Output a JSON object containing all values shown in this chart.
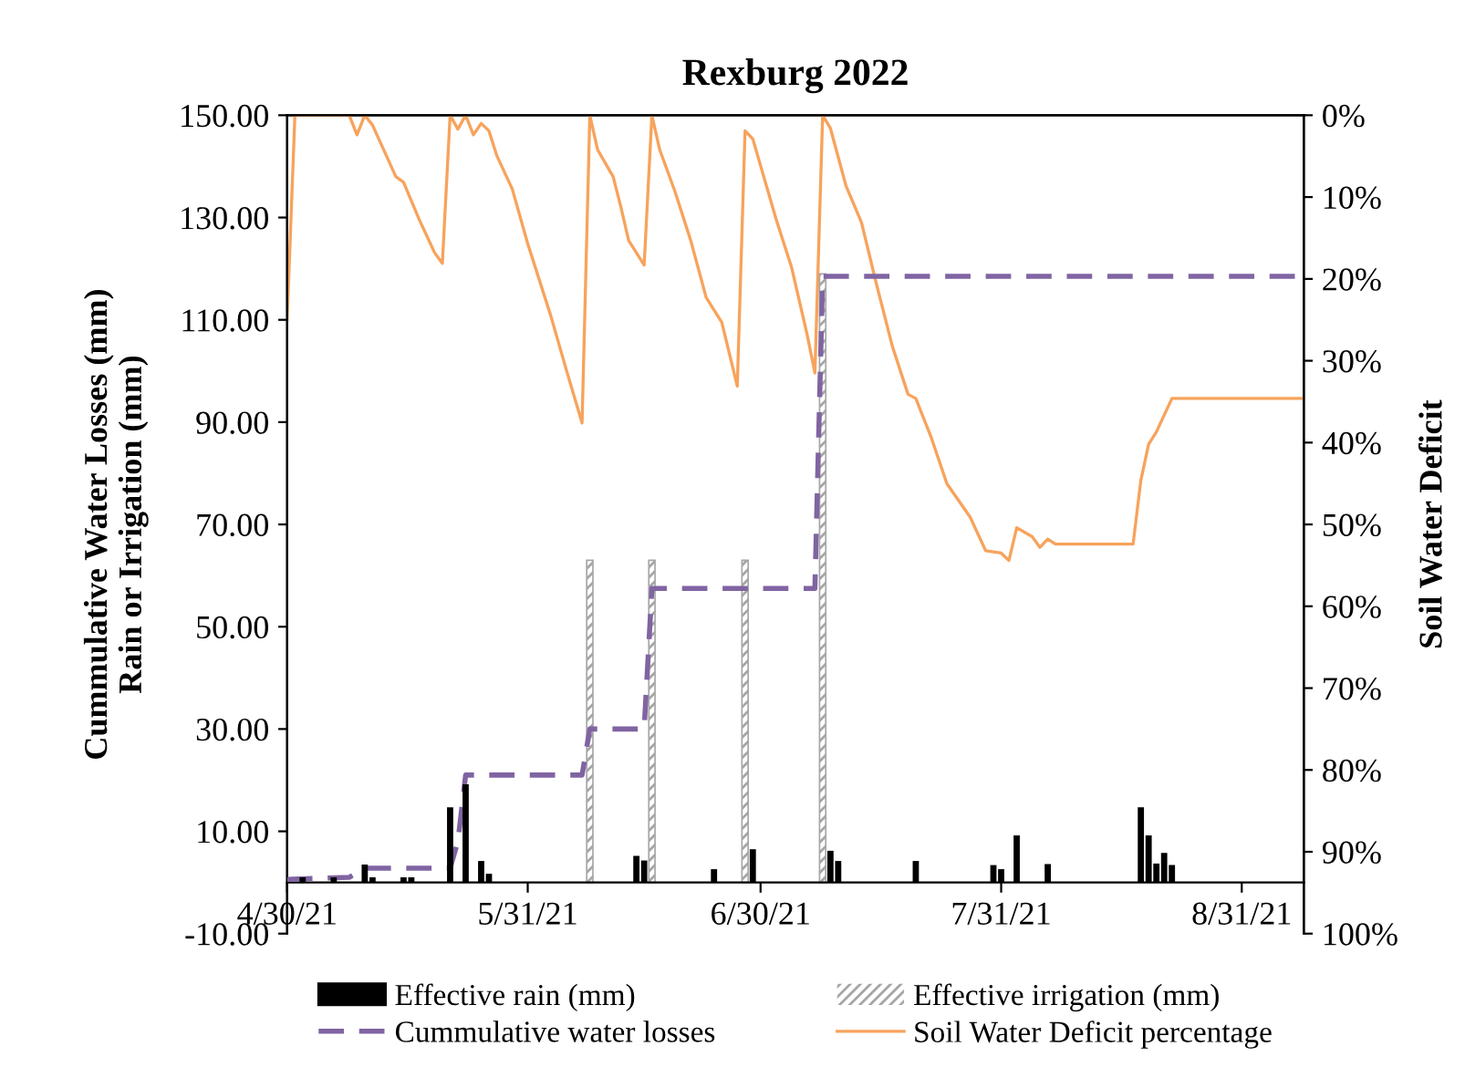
{
  "chart_data": {
    "type": "bar",
    "title": "Rexburg 2022",
    "ylabel": "Cummulative Water Losses (mm)\nRain or Irrigation (mm)",
    "y2label": "Soil Water Deficit",
    "xlim": [
      "2021-04-30",
      "2021-09-08"
    ],
    "xticks": [
      {
        "value": "2021-04-30",
        "label": "4/30/21"
      },
      {
        "value": "2021-05-31",
        "label": "5/31/21"
      },
      {
        "value": "2021-06-30",
        "label": "6/30/21"
      },
      {
        "value": "2021-07-31",
        "label": "7/31/21"
      },
      {
        "value": "2021-08-31",
        "label": "8/31/21"
      }
    ],
    "ylim": [
      -10,
      150
    ],
    "yticks": [
      {
        "value": -10,
        "label": "-10.00"
      },
      {
        "value": 10,
        "label": "10.00"
      },
      {
        "value": 30,
        "label": "30.00"
      },
      {
        "value": 50,
        "label": "50.00"
      },
      {
        "value": 70,
        "label": "70.00"
      },
      {
        "value": 90,
        "label": "90.00"
      },
      {
        "value": 110,
        "label": "110.00"
      },
      {
        "value": 130,
        "label": "130.00"
      },
      {
        "value": 150,
        "label": "150.00"
      }
    ],
    "y2lim": [
      100,
      0
    ],
    "y2ticks": [
      {
        "value": 0,
        "label": "0%"
      },
      {
        "value": 10,
        "label": "10%"
      },
      {
        "value": 20,
        "label": "20%"
      },
      {
        "value": 30,
        "label": "30%"
      },
      {
        "value": 40,
        "label": "40%"
      },
      {
        "value": 50,
        "label": "50%"
      },
      {
        "value": 60,
        "label": "60%"
      },
      {
        "value": 70,
        "label": "70%"
      },
      {
        "value": 80,
        "label": "80%"
      },
      {
        "value": 90,
        "label": "90%"
      },
      {
        "value": 100,
        "label": "100%"
      }
    ],
    "legend": "bottom",
    "series": [
      {
        "name": "Effective rain (mm)",
        "color": "#000000",
        "x": [
          "2021-05-02",
          "2021-05-06",
          "2021-05-10",
          "2021-05-11",
          "2021-05-15",
          "2021-05-16",
          "2021-05-21",
          "2021-05-23",
          "2021-05-25",
          "2021-05-26",
          "2021-06-14",
          "2021-06-15",
          "2021-06-24",
          "2021-06-29",
          "2021-07-09",
          "2021-07-10",
          "2021-07-20",
          "2021-07-30",
          "2021-07-31",
          "2021-08-02",
          "2021-08-06",
          "2021-08-18",
          "2021-08-19",
          "2021-08-20",
          "2021-08-21",
          "2021-08-22"
        ],
        "values": [
          1,
          1,
          3.5,
          1,
          1,
          1,
          14.7,
          19.2,
          4.2,
          1.7,
          5.2,
          4.3,
          2.6,
          6.5,
          6.2,
          4.2,
          4.2,
          3.4,
          2.6,
          9.2,
          3.6,
          14.7,
          9.2,
          3.7,
          5.8,
          3.4
        ]
      },
      {
        "name": "Effective irrigation (mm)",
        "color": "#a6a6a6",
        "x": [
          "2021-06-08",
          "2021-06-16",
          "2021-06-28",
          "2021-07-08"
        ],
        "values": [
          63,
          63,
          63,
          119
        ]
      },
      {
        "name": "Cummulative water losses",
        "type": "line",
        "color": "#8064a2",
        "line_style": "dashed",
        "x": [
          "2021-04-30",
          "2021-05-08",
          "2021-05-10",
          "2021-05-21",
          "2021-05-22",
          "2021-05-23",
          "2021-06-07",
          "2021-06-08",
          "2021-06-15",
          "2021-06-16",
          "2021-07-07",
          "2021-07-08",
          "2021-09-08"
        ],
        "values": [
          0.6,
          1,
          2.8,
          2.8,
          8,
          21,
          21,
          30,
          30,
          57.5,
          57.5,
          118.5,
          118.5
        ]
      },
      {
        "name": "Soil Water Deficit percentage",
        "type": "line",
        "axis": "y2",
        "color": "#f7a35c",
        "line_style": "solid",
        "x": [
          "2021-04-30",
          "2021-05-01",
          "2021-05-08",
          "2021-05-09",
          "2021-05-10",
          "2021-05-11",
          "2021-05-14",
          "2021-05-15",
          "2021-05-17",
          "2021-05-19",
          "2021-05-20",
          "2021-05-21",
          "2021-05-22",
          "2021-05-23",
          "2021-05-24",
          "2021-05-25",
          "2021-05-26",
          "2021-05-27",
          "2021-05-29",
          "2021-05-31",
          "2021-06-03",
          "2021-06-05",
          "2021-06-07",
          "2021-06-08",
          "2021-06-09",
          "2021-06-11",
          "2021-06-12",
          "2021-06-13",
          "2021-06-14",
          "2021-06-15",
          "2021-06-16",
          "2021-06-17",
          "2021-06-19",
          "2021-06-21",
          "2021-06-23",
          "2021-06-25",
          "2021-06-27",
          "2021-06-28",
          "2021-06-29",
          "2021-07-02",
          "2021-07-04",
          "2021-07-06",
          "2021-07-07",
          "2021-07-08",
          "2021-07-09",
          "2021-07-11",
          "2021-07-13",
          "2021-07-15",
          "2021-07-17",
          "2021-07-19",
          "2021-07-20",
          "2021-07-22",
          "2021-07-24",
          "2021-07-27",
          "2021-07-29",
          "2021-07-31",
          "2021-08-01",
          "2021-08-02",
          "2021-08-04",
          "2021-08-05",
          "2021-08-06",
          "2021-08-07",
          "2021-08-17",
          "2021-08-18",
          "2021-08-19",
          "2021-08-20",
          "2021-08-22",
          "2021-09-08"
        ],
        "values": [
          25,
          0,
          0,
          2.4,
          0,
          1.2,
          7.5,
          8.2,
          12.7,
          16.8,
          18.1,
          0,
          1.7,
          0,
          2.4,
          1,
          1.9,
          4.9,
          9,
          15.7,
          24.6,
          31.2,
          37.6,
          0,
          4.2,
          7.5,
          11.2,
          15.3,
          16.8,
          18.3,
          0,
          4.2,
          9.4,
          15.3,
          22.3,
          25.3,
          33.1,
          1.9,
          2.9,
          12.7,
          18.6,
          26.8,
          31.5,
          0,
          1.6,
          8.6,
          13.1,
          20.9,
          28.3,
          34.1,
          34.6,
          39.4,
          45,
          49.1,
          53.2,
          53.5,
          54.4,
          50.4,
          51.5,
          52.8,
          51.8,
          52.4,
          52.4,
          44.6,
          40.2,
          38.7,
          34.6,
          34.6
        ]
      }
    ]
  }
}
